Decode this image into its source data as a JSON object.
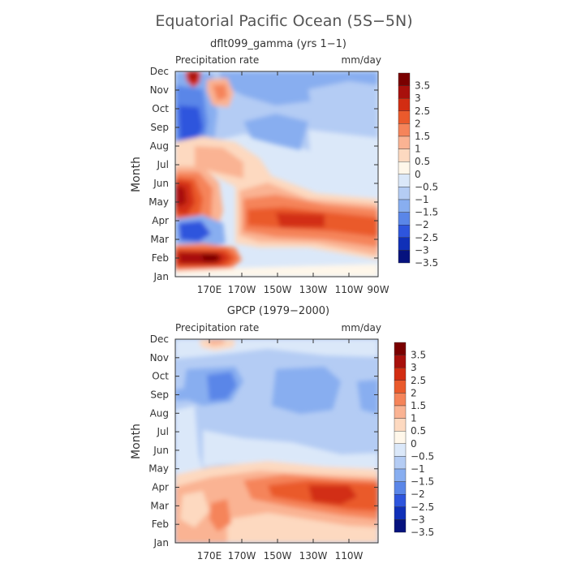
{
  "figure": {
    "title": "Equatorial Pacific Ocean (5S−5N)"
  },
  "legend_levels": [
    "3.5",
    "3",
    "2.5",
    "2",
    "1.5",
    "1",
    "0.5",
    "0",
    "−0.5",
    "−1",
    "−1.5",
    "−2",
    "−2.5",
    "−3",
    "−3.5"
  ],
  "colors": {
    "c3_5": "#7a0000",
    "c3": "#a8100c",
    "c2_5": "#d22d12",
    "c2": "#ea5a2c",
    "c1_5": "#f5845a",
    "c1": "#fab393",
    "c0_5": "#fdd9c0",
    "c0": "#fff7ea",
    "cm0_5": "#dbe8f9",
    "cm1": "#b4ccf4",
    "cm1_5": "#88aef0",
    "cm2": "#5a86e8",
    "cm2_5": "#2e55dd",
    "cm3": "#1030b8",
    "cm3_5": "#06127e"
  },
  "chart_data": [
    {
      "type": "heatmap",
      "title": "dflt099_gamma (yrs 1−1)",
      "variable": "Precipitation rate",
      "units": "mm/day",
      "ylabel": "Month",
      "yticks": [
        "Jan",
        "Feb",
        "Mar",
        "Apr",
        "May",
        "Jun",
        "Jul",
        "Aug",
        "Sep",
        "Oct",
        "Nov",
        "Dec"
      ],
      "xticks": [
        "170E",
        "170W",
        "150W",
        "130W",
        "110W",
        "90W"
      ],
      "xlim": [
        150,
        270
      ],
      "ylim": [
        1,
        12
      ],
      "grid": false,
      "legend": "right",
      "contour_levels": [
        -3.5,
        -3,
        -2.5,
        -2,
        -1.5,
        -1,
        -0.5,
        0,
        0.5,
        1,
        1.5,
        2,
        2.5,
        3,
        3.5
      ]
    },
    {
      "type": "heatmap",
      "title": "GPCP (1979−2000)",
      "variable": "Precipitation rate",
      "units": "mm/day",
      "ylabel": "Month",
      "yticks": [
        "Jan",
        "Feb",
        "Mar",
        "Apr",
        "May",
        "Jun",
        "Jul",
        "Aug",
        "Sep",
        "Oct",
        "Nov",
        "Dec"
      ],
      "xticks": [
        "170E",
        "170W",
        "150W",
        "130W",
        "110W"
      ],
      "xlim": [
        150,
        270
      ],
      "ylim": [
        1,
        12
      ],
      "grid": false,
      "legend": "right",
      "contour_levels": [
        -3.5,
        -3,
        -2.5,
        -2,
        -1.5,
        -1,
        -0.5,
        0,
        0.5,
        1,
        1.5,
        2,
        2.5,
        3,
        3.5
      ]
    }
  ]
}
